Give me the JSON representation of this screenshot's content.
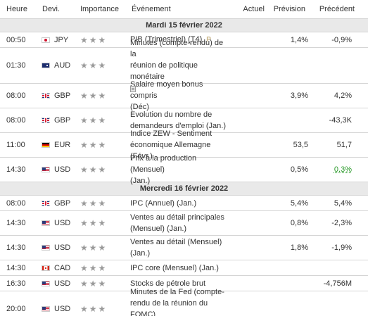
{
  "headers": {
    "time": "Heure",
    "currency": "Devi.",
    "importance": "Importance",
    "event": "Événement",
    "actual": "Actuel",
    "forecast": "Prévision",
    "previous": "Précédent"
  },
  "days": [
    {
      "label": "Mardi 15 février 2022",
      "events": [
        {
          "time": "00:50",
          "flag": "jp",
          "currency": "JPY",
          "stars": "★★★",
          "lines": [
            "PIB (Trimestriel) (T4)"
          ],
          "prelim": "P",
          "doc": false,
          "actual": "",
          "forecast": "1,4%",
          "previous": "-0,9%",
          "previous_color": ""
        },
        {
          "time": "01:30",
          "flag": "au",
          "currency": "AUD",
          "stars": "★★★",
          "lines": [
            "Minutes (compte-rendu) de la",
            "réunion de politique monétaire"
          ],
          "prelim": "",
          "doc": true,
          "actual": "",
          "forecast": "",
          "previous": "",
          "previous_color": ""
        },
        {
          "time": "08:00",
          "flag": "gb",
          "currency": "GBP",
          "stars": "★★★",
          "lines": [
            "Salaire moyen bonus compris",
            "(Déc)"
          ],
          "prelim": "",
          "doc": false,
          "actual": "",
          "forecast": "3,9%",
          "previous": "4,2%",
          "previous_color": ""
        },
        {
          "time": "08:00",
          "flag": "gb",
          "currency": "GBP",
          "stars": "★★★",
          "lines": [
            "Evolution du nombre de",
            "demandeurs d'emploi (Jan.)"
          ],
          "prelim": "",
          "doc": false,
          "actual": "",
          "forecast": "",
          "previous": "-43,3K",
          "previous_color": ""
        },
        {
          "time": "11:00",
          "flag": "de",
          "currency": "EUR",
          "stars": "★★★",
          "lines": [
            "Indice ZEW - Sentiment",
            "économique Allemagne (Févr.)"
          ],
          "prelim": "",
          "doc": false,
          "actual": "",
          "forecast": "53,5",
          "previous": "51,7",
          "previous_color": ""
        },
        {
          "time": "14:30",
          "flag": "us",
          "currency": "USD",
          "stars": "★★★",
          "lines": [
            "Prix à la production (Mensuel)",
            "(Jan.)"
          ],
          "prelim": "",
          "doc": false,
          "actual": "",
          "forecast": "0,5%",
          "previous": "0,3%",
          "previous_color": "green"
        }
      ]
    },
    {
      "label": "Mercredi 16 février 2022",
      "events": [
        {
          "time": "08:00",
          "flag": "gb",
          "currency": "GBP",
          "stars": "★★★",
          "lines": [
            "IPC (Annuel) (Jan.)"
          ],
          "prelim": "",
          "doc": false,
          "actual": "",
          "forecast": "5,4%",
          "previous": "5,4%",
          "previous_color": ""
        },
        {
          "time": "14:30",
          "flag": "us",
          "currency": "USD",
          "stars": "★★★",
          "lines": [
            "Ventes au détail principales",
            "(Mensuel) (Jan.)"
          ],
          "prelim": "",
          "doc": false,
          "actual": "",
          "forecast": "0,8%",
          "previous": "-2,3%",
          "previous_color": ""
        },
        {
          "time": "14:30",
          "flag": "us",
          "currency": "USD",
          "stars": "★★★",
          "lines": [
            "Ventes au détail (Mensuel)",
            "(Jan.)"
          ],
          "prelim": "",
          "doc": false,
          "actual": "",
          "forecast": "1,8%",
          "previous": "-1,9%",
          "previous_color": ""
        },
        {
          "time": "14:30",
          "flag": "ca",
          "currency": "CAD",
          "stars": "★★★",
          "lines": [
            "IPC core (Mensuel) (Jan.)"
          ],
          "prelim": "",
          "doc": false,
          "actual": "",
          "forecast": "",
          "previous": "",
          "previous_color": ""
        },
        {
          "time": "16:30",
          "flag": "us",
          "currency": "USD",
          "stars": "★★★",
          "lines": [
            "Stocks de pétrole brut"
          ],
          "prelim": "",
          "doc": false,
          "actual": "",
          "forecast": "",
          "previous": "-4,756M",
          "previous_color": ""
        },
        {
          "time": "20:00",
          "flag": "us",
          "currency": "USD",
          "stars": "★★★",
          "lines": [
            "Minutes de la Fed (compte-",
            "rendu de la réunion du FOMC)"
          ],
          "prelim": "",
          "doc": true,
          "actual": "",
          "forecast": "",
          "previous": "",
          "previous_color": ""
        }
      ]
    }
  ],
  "colors": {
    "header_bg": "#ffffff",
    "day_bg": "#e9e9e9",
    "border": "#d5d5d5",
    "star": "#9a9a9a",
    "positive": "#2a9a2a"
  },
  "icons": {
    "doc": "document-icon",
    "prelim": "preliminary-icon"
  }
}
